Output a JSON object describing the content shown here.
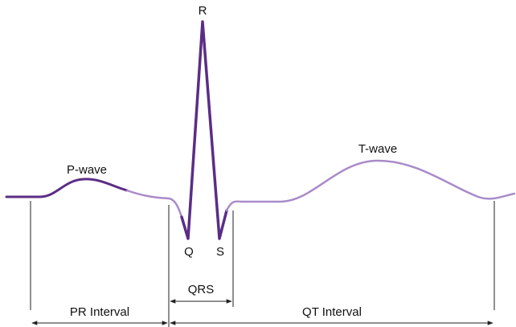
{
  "labels": {
    "p_wave": "P-wave",
    "r": "R",
    "q": "Q",
    "s": "S",
    "t_wave": "T-wave"
  },
  "intervals": {
    "qrs": "QRS",
    "pr": "PR Interval",
    "qt": "QT Interval"
  }
}
